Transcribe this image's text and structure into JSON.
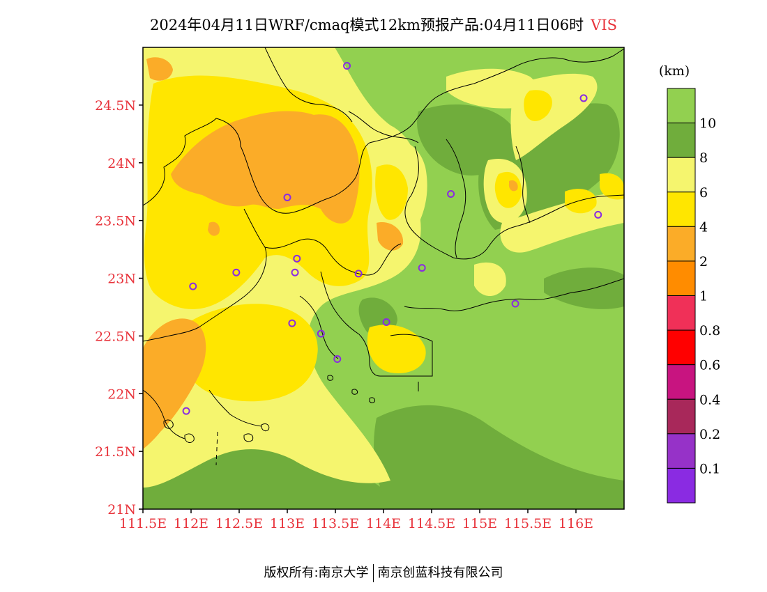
{
  "title": {
    "main": "2024年04月11日WRF/cmaq模式12km预报产品:04月11日06时",
    "variable": "VIS"
  },
  "axes": {
    "lat_labels": [
      "24.5N",
      "24N",
      "23.5N",
      "23N",
      "22.5N",
      "22N",
      "21.5N",
      "21N"
    ],
    "lat_values": [
      24.5,
      24.0,
      23.5,
      23.0,
      22.5,
      22.0,
      21.5,
      21.0
    ],
    "lon_labels": [
      "111.5E",
      "112E",
      "112.5E",
      "113E",
      "113.5E",
      "114E",
      "114.5E",
      "115E",
      "115.5E",
      "116E"
    ],
    "lon_values": [
      111.5,
      112.0,
      112.5,
      113.0,
      113.5,
      114.0,
      114.5,
      115.0,
      115.5,
      116.0
    ],
    "lon_range": [
      111.5,
      116.5
    ],
    "lat_range": [
      21.0,
      25.0
    ],
    "label_color": "#e8343c"
  },
  "legend": {
    "unit": "(km)",
    "labels": [
      "10",
      "8",
      "6",
      "4",
      "2",
      "1",
      "0.8",
      "0.6",
      "0.4",
      "0.2",
      "0.1"
    ],
    "colors": [
      "#92d050",
      "#70ad3c",
      "#f5f56e",
      "#ffe600",
      "#fbac28",
      "#ff8c00",
      "#f03058",
      "#ff0000",
      "#c81480",
      "#a8285a",
      "#9632c8",
      "#8a2be2"
    ]
  },
  "stations": [
    {
      "lon": 113.62,
      "lat": 24.84
    },
    {
      "lon": 116.08,
      "lat": 24.56
    },
    {
      "lon": 113.0,
      "lat": 23.7
    },
    {
      "lon": 114.7,
      "lat": 23.73
    },
    {
      "lon": 116.23,
      "lat": 23.55
    },
    {
      "lon": 113.1,
      "lat": 23.17
    },
    {
      "lon": 113.08,
      "lat": 23.05
    },
    {
      "lon": 112.47,
      "lat": 23.05
    },
    {
      "lon": 113.74,
      "lat": 23.04
    },
    {
      "lon": 114.4,
      "lat": 23.09
    },
    {
      "lon": 112.02,
      "lat": 22.93
    },
    {
      "lon": 113.05,
      "lat": 22.61
    },
    {
      "lon": 113.35,
      "lat": 22.52
    },
    {
      "lon": 114.03,
      "lat": 22.62
    },
    {
      "lon": 115.37,
      "lat": 22.78
    },
    {
      "lon": 113.52,
      "lat": 22.3
    },
    {
      "lon": 111.95,
      "lat": 21.85
    }
  ],
  "footer": {
    "left": "版权所有:南京大学",
    "right": "南京创蓝科技有限公司"
  }
}
